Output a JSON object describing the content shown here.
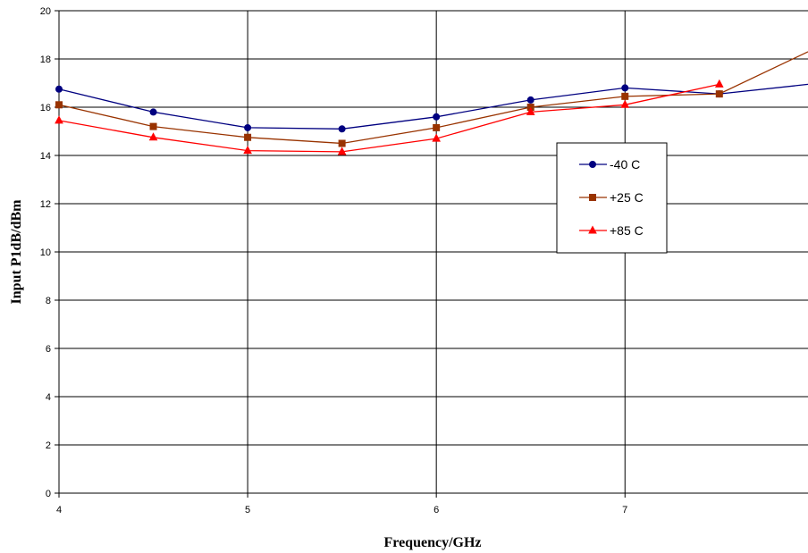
{
  "chart_data": {
    "type": "line",
    "title": "",
    "xlabel": "Frequency/GHz",
    "ylabel": "Input P1dB/dBm",
    "xlim": [
      4,
      7.97
    ],
    "ylim": [
      0,
      20
    ],
    "x_ticks": [
      "4",
      "5",
      "6",
      "7"
    ],
    "y_ticks": [
      "0",
      "2",
      "4",
      "6",
      "8",
      "10",
      "12",
      "14",
      "16",
      "18",
      "20"
    ],
    "grid": true,
    "legend_position": "right",
    "series": [
      {
        "name": "-40 C",
        "color": "#000080",
        "marker": "circle",
        "x": [
          4.0,
          4.5,
          5.0,
          5.5,
          6.0,
          6.5,
          7.0,
          7.5,
          7.97
        ],
        "y": [
          16.75,
          15.8,
          15.15,
          15.1,
          15.6,
          16.3,
          16.8,
          16.55,
          16.95
        ]
      },
      {
        "name": "+25 C",
        "color": "#993300",
        "marker": "square",
        "x": [
          4.0,
          4.5,
          5.0,
          5.5,
          6.0,
          6.5,
          7.0,
          7.5,
          7.97
        ],
        "y": [
          16.1,
          15.2,
          14.75,
          14.5,
          15.15,
          16.0,
          16.45,
          16.55,
          18.3
        ]
      },
      {
        "name": "+85 C",
        "color": "#ff0000",
        "marker": "triangle",
        "x": [
          4.0,
          4.5,
          5.0,
          5.5,
          6.0,
          6.5,
          7.0,
          7.5
        ],
        "y": [
          15.45,
          14.75,
          14.2,
          14.15,
          14.7,
          15.8,
          16.1,
          16.95
        ]
      }
    ]
  }
}
